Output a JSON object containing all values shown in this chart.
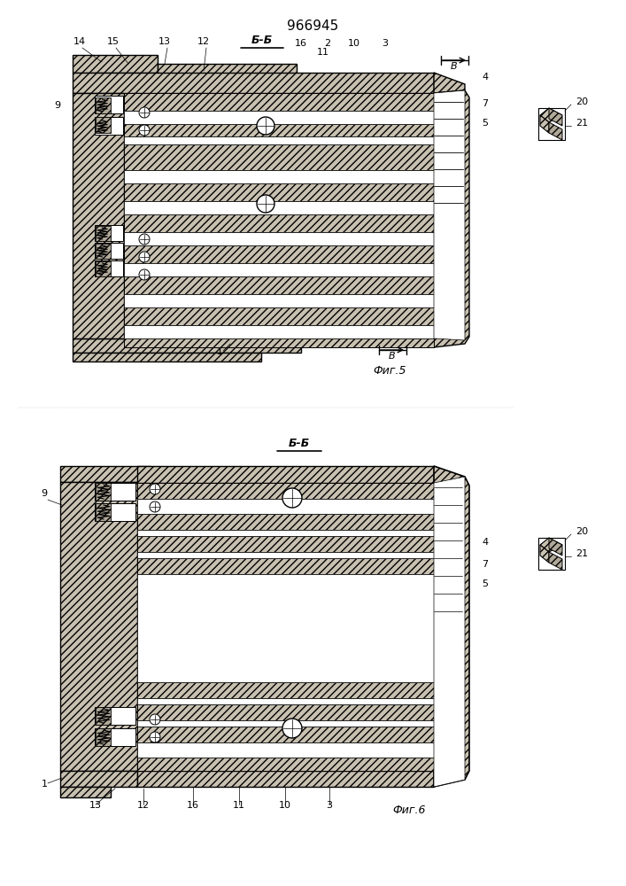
{
  "title": "966945",
  "fig1_label": "Фиг.5",
  "fig2_label": "Фиг.6",
  "section_label": "Б-Б",
  "arrow_label": "В",
  "bg_color": "#ffffff",
  "hatch_fill": "#c8c0b0",
  "hatch_fill2": "#b0a898",
  "line_color": "#000000",
  "white": "#ffffff",
  "label_20_top": "20",
  "label_21_top": "21",
  "label_20_bot": "20",
  "label_21_bot": "21"
}
